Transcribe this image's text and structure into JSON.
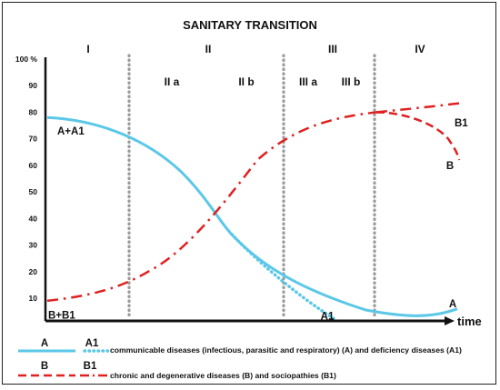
{
  "chart_data": {
    "type": "line",
    "title": "SANITARY TRANSITION",
    "xlabel": "time",
    "ylabel": "",
    "ylim": [
      0,
      100
    ],
    "yticks": [
      10,
      20,
      30,
      40,
      50,
      60,
      70,
      80,
      90,
      100
    ],
    "ytick_labels": [
      "10",
      "20",
      "30",
      "40",
      "50",
      "60",
      "70",
      "80",
      "90",
      "100 %"
    ],
    "phases": [
      "I",
      "II",
      "III",
      "IV"
    ],
    "subphases": [
      "II a",
      "II b",
      "III a",
      "III b"
    ],
    "grid": "vertical dotted separators between phases",
    "series": [
      {
        "key": "A",
        "color": "#5bc8e8",
        "style": "solid",
        "x": [
          0,
          0.1,
          0.2,
          0.3,
          0.4,
          0.5,
          0.55,
          0.6,
          0.7,
          0.8,
          0.9,
          0.96,
          1.0
        ],
        "values": [
          78,
          75,
          70,
          60,
          45,
          30,
          25,
          20,
          12,
          6,
          3,
          3.5,
          5
        ]
      },
      {
        "key": "A1",
        "color": "#5bc8e8",
        "style": "dotted",
        "x": [
          0.4,
          0.5,
          0.6,
          0.7
        ],
        "values": [
          45,
          30,
          13,
          0
        ]
      },
      {
        "key": "B",
        "color": "#e02020",
        "style": "dashed",
        "x": [
          0,
          0.1,
          0.2,
          0.3,
          0.4,
          0.5,
          0.6,
          0.7,
          0.8,
          0.9,
          1.0
        ],
        "values": [
          9,
          11,
          16,
          26,
          39,
          54,
          70,
          77,
          79,
          77,
          64
        ]
      },
      {
        "key": "B1",
        "color": "#e02020",
        "style": "dash-dot",
        "x": [
          0,
          0.1,
          0.2,
          0.3,
          0.4,
          0.5,
          0.6,
          0.7,
          0.8,
          0.9,
          1.0
        ],
        "values": [
          9,
          11,
          16,
          26,
          39,
          54,
          70,
          77,
          79,
          81,
          83
        ]
      }
    ],
    "annotations": [
      "A+A1",
      "B+B1",
      "A",
      "A1",
      "B",
      "B1"
    ]
  },
  "legend": {
    "row1": {
      "keys": [
        "A",
        "A1"
      ],
      "text": "communicable diseases (infectious, parasitic and respiratory) (A) and deficiency diseases (A1)"
    },
    "row2": {
      "keys": [
        "B",
        "B1"
      ],
      "text": "chronic and degenerative diseases (B) and sociopathies (B1)"
    }
  }
}
